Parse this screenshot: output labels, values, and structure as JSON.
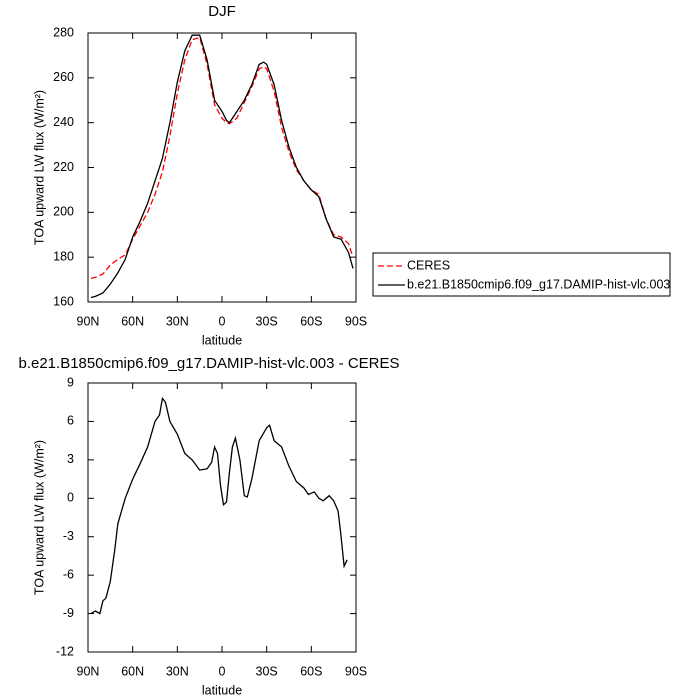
{
  "chart_data": [
    {
      "type": "line",
      "title": "DJF",
      "x_label": "latitude",
      "y_label": "TOA upward LW flux (W/m²)",
      "xlim": [
        90,
        -90
      ],
      "ylim": [
        160,
        280
      ],
      "xticks": [
        {
          "value": 90,
          "label": "90N"
        },
        {
          "value": 60,
          "label": "60N"
        },
        {
          "value": 30,
          "label": "30N"
        },
        0,
        {
          "value": -30,
          "label": "30S"
        },
        {
          "value": -60,
          "label": "60S"
        },
        {
          "value": -90,
          "label": "90S"
        }
      ],
      "yticks": [
        160,
        180,
        200,
        220,
        240,
        260,
        280
      ],
      "legend": "right",
      "x": [
        88,
        85,
        80,
        75,
        70,
        65,
        60,
        55,
        50,
        45,
        40,
        35,
        30,
        25,
        20,
        15,
        10,
        5,
        0,
        -3,
        -5,
        -10,
        -15,
        -20,
        -25,
        -28,
        -30,
        -35,
        -40,
        -45,
        -50,
        -55,
        -60,
        -65,
        -70,
        -75,
        -80,
        -85,
        -88
      ],
      "series": [
        {
          "name": "CERES",
          "color": "#ff0000",
          "style": "dashed",
          "values": [
            170.5,
            171,
            172.5,
            176.5,
            179,
            181,
            188,
            194,
            200,
            208,
            218,
            234,
            253,
            268,
            277,
            278,
            266,
            248,
            242,
            240,
            239.5,
            242,
            249,
            256,
            264,
            265,
            264,
            254,
            238,
            227,
            219,
            214,
            210,
            208,
            197,
            190,
            189,
            186,
            180
          ]
        },
        {
          "name": "b.e21.B1850cmip6.f09_g17.DAMIP-hist-vlc.003",
          "color": "#000000",
          "style": "solid",
          "values": [
            162,
            162.5,
            164,
            168,
            173,
            179,
            189,
            196,
            204,
            214,
            224,
            240,
            258,
            272,
            279,
            279,
            268,
            250,
            245,
            241,
            240,
            245,
            250,
            257,
            266,
            267,
            266,
            257,
            241,
            229,
            220,
            214,
            210,
            207,
            197,
            189,
            188,
            182,
            175
          ]
        }
      ]
    },
    {
      "type": "line",
      "title": "b.e21.B1850cmip6.f09_g17.DAMIP-hist-vlc.003 - CERES",
      "x_label": "latitude",
      "y_label": "TOA upward LW flux (W/m²)",
      "xlim": [
        90,
        -90
      ],
      "ylim": [
        -12,
        9
      ],
      "xticks": [
        {
          "value": 90,
          "label": "90N"
        },
        {
          "value": 60,
          "label": "60N"
        },
        {
          "value": 30,
          "label": "30N"
        },
        0,
        {
          "value": -30,
          "label": "30S"
        },
        {
          "value": -60,
          "label": "60S"
        },
        {
          "value": -90,
          "label": "90S"
        }
      ],
      "yticks": [
        -12,
        -9,
        -6,
        -3,
        0,
        3,
        6,
        9
      ],
      "x": [
        88,
        85,
        82,
        80,
        78,
        75,
        72,
        70,
        65,
        60,
        55,
        50,
        45,
        42,
        40,
        38,
        35,
        30,
        25,
        20,
        15,
        10,
        7,
        5,
        3,
        1,
        -1,
        -3,
        -5,
        -7,
        -9,
        -12,
        -15,
        -17,
        -20,
        -25,
        -30,
        -32,
        -35,
        -40,
        -45,
        -50,
        -55,
        -58,
        -60,
        -62,
        -65,
        -68,
        -72,
        -75,
        -78,
        -80,
        -82,
        -84
      ],
      "series": [
        {
          "name": "b.e21.B1850cmip6.f09_g17.DAMIP-hist-vlc.003 - CERES",
          "color": "#000000",
          "style": "solid",
          "values": [
            -9,
            -8.8,
            -9,
            -8,
            -7.8,
            -6.5,
            -4,
            -2,
            0,
            1.5,
            2.7,
            4,
            6,
            6.5,
            7.8,
            7.5,
            6,
            5,
            3.5,
            3,
            2.2,
            2.3,
            2.8,
            4,
            3.5,
            1,
            -0.5,
            -0.3,
            2,
            4,
            4.7,
            3,
            0.2,
            0.1,
            1.5,
            4.5,
            5.5,
            5.7,
            4.5,
            4,
            2.5,
            1.3,
            0.8,
            0.3,
            0.4,
            0.5,
            0,
            -0.2,
            0.2,
            -0.2,
            -1,
            -3,
            -5.3,
            -4.8
          ]
        }
      ]
    }
  ]
}
